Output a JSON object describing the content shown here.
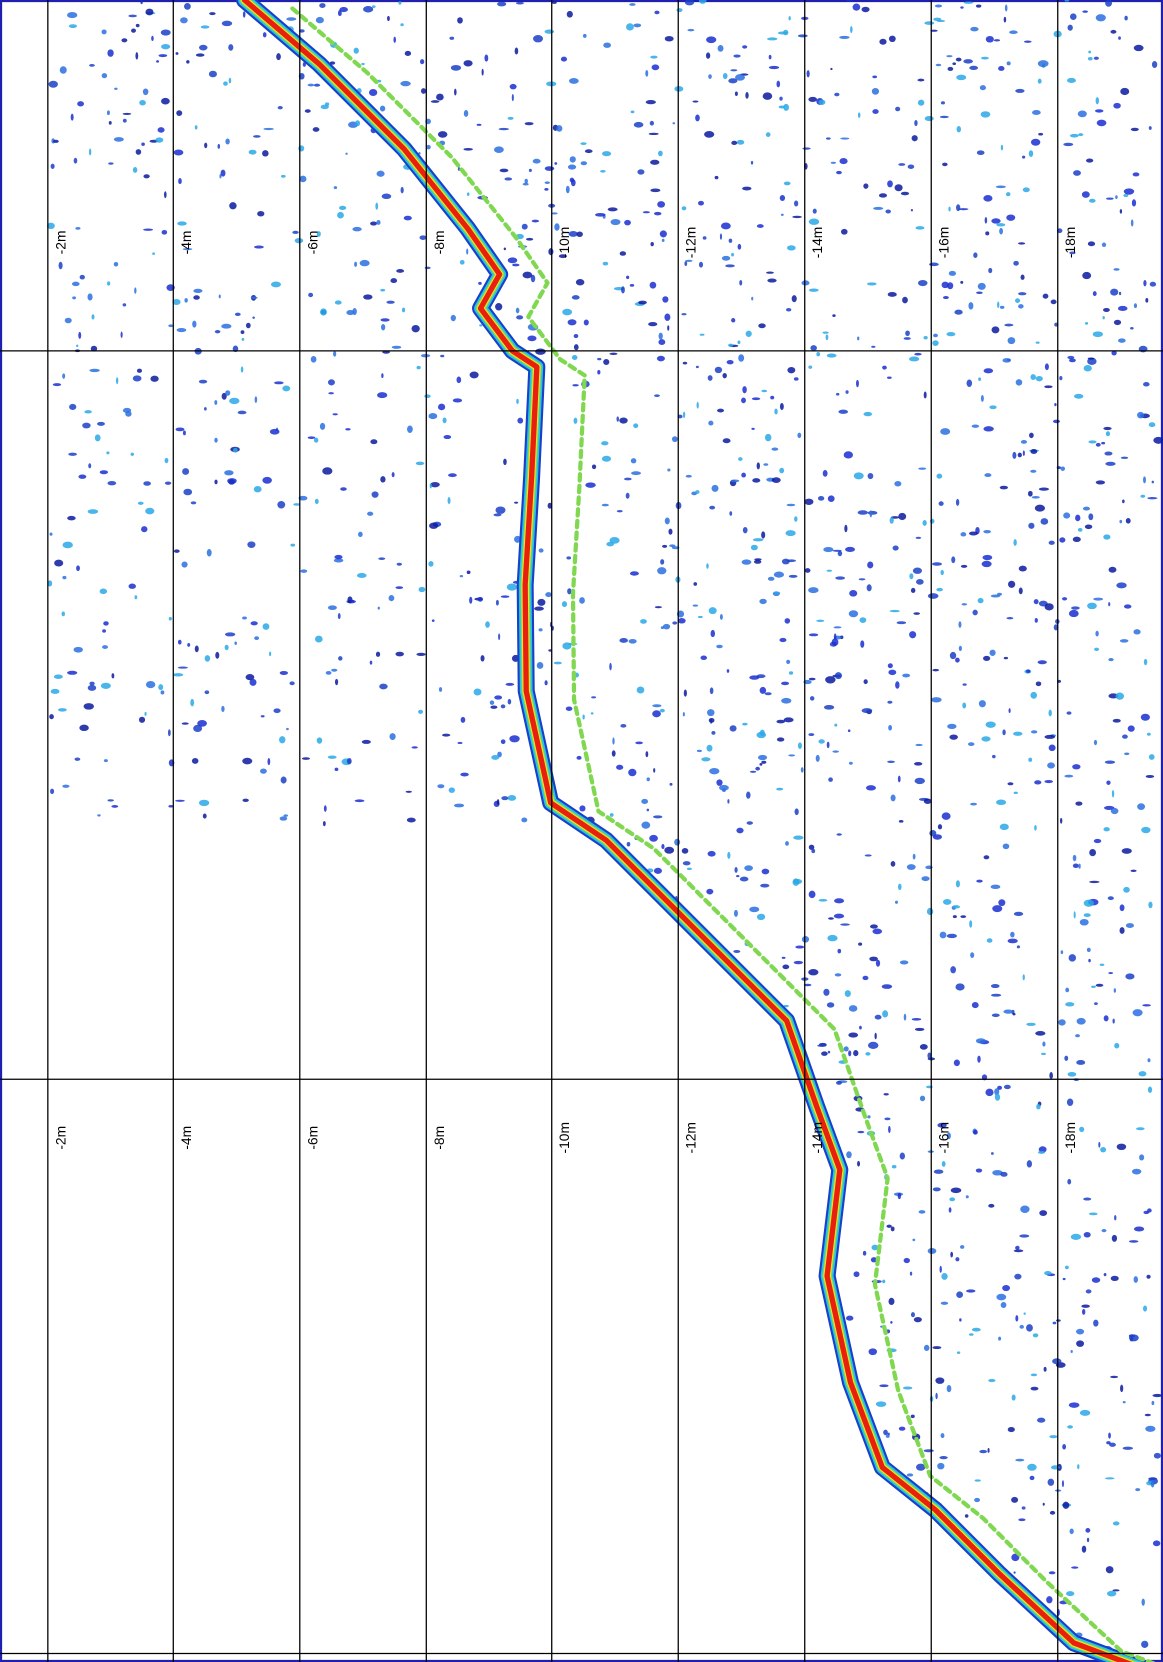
{
  "depth_scales": [
    {
      "labels": [
        "-2m",
        "-4m",
        "-6m",
        "-8m",
        "-10m",
        "-12m",
        "-14m",
        "-16m",
        "-18m"
      ]
    },
    {
      "labels": [
        "-2m",
        "-4m",
        "-6m",
        "-8m",
        "-10m",
        "-12m",
        "-14m",
        "-16m",
        "-18m"
      ]
    }
  ]
}
